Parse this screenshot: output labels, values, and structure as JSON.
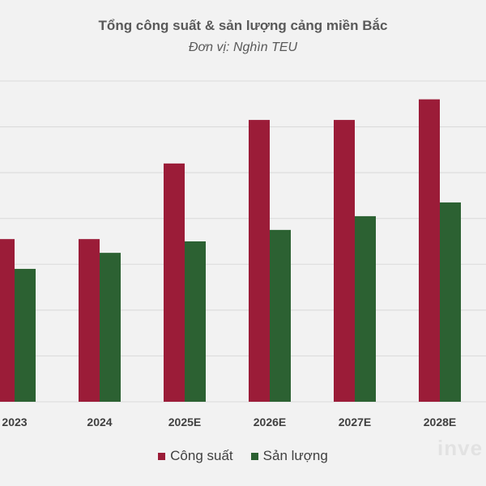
{
  "chart_data": {
    "type": "bar",
    "title": "Tổng công suất & sản lượng cảng miền Bắc",
    "subtitle": "Đơn vị: Nghìn TEU",
    "xlabel": "",
    "ylabel": "",
    "categories": [
      "2023",
      "2024",
      "2025E",
      "2026E",
      "2027E",
      "2028E"
    ],
    "series": [
      {
        "name": "Công suất",
        "color": "#9b1c38",
        "values": [
          7100,
          7100,
          10400,
          12300,
          12300,
          13200
        ]
      },
      {
        "name": "Sản lượng",
        "color": "#2c6132",
        "values": [
          5800,
          6500,
          7000,
          7500,
          8100,
          8700
        ]
      }
    ],
    "ylim": [
      0,
      14000
    ],
    "grid": true,
    "legend_position": "bottom"
  },
  "watermark": "inve"
}
